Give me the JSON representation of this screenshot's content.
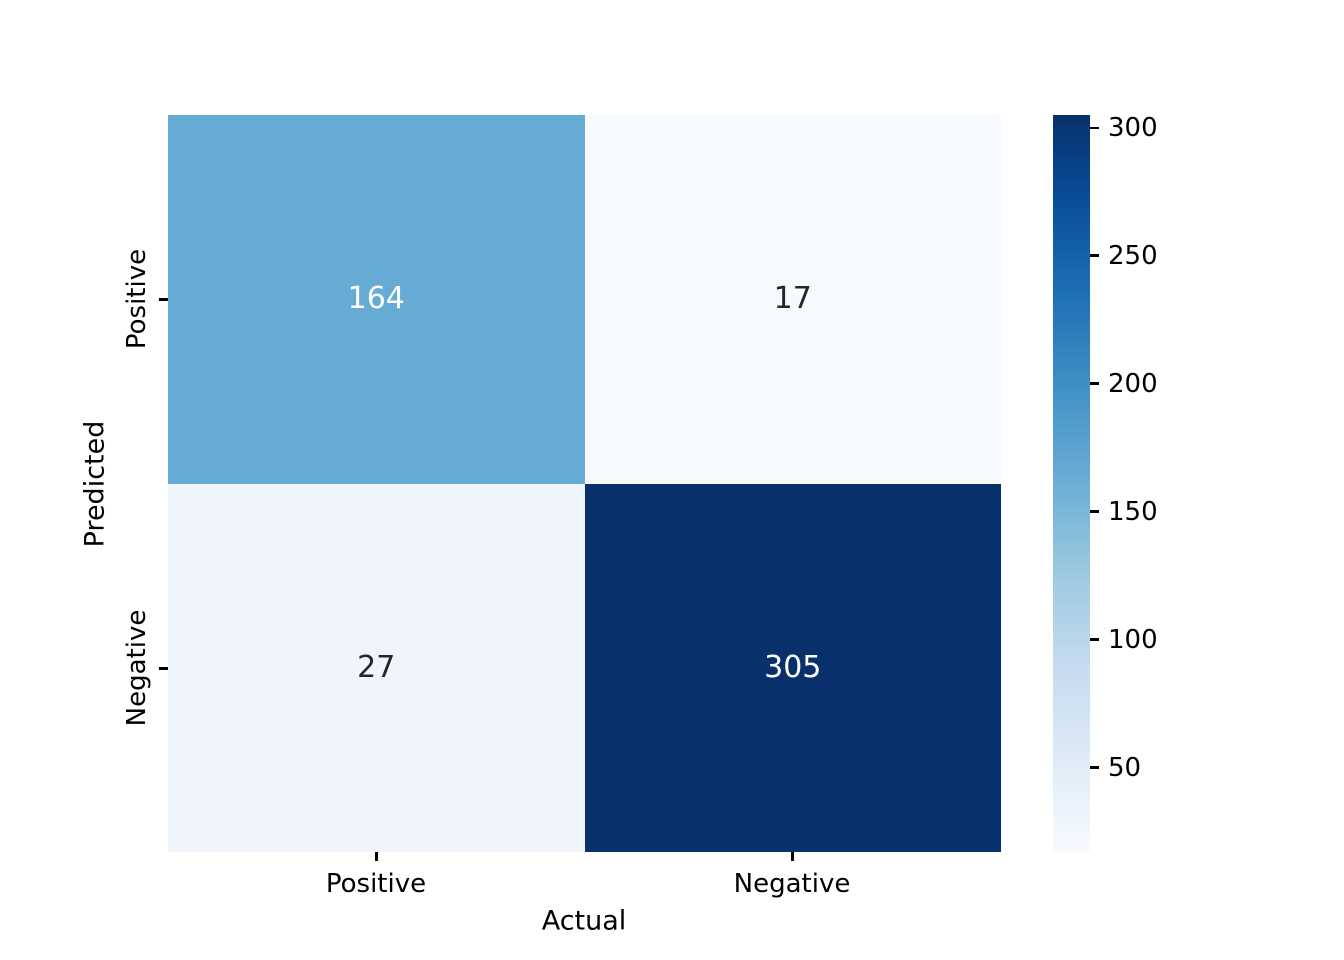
{
  "chart_data": {
    "type": "heatmap",
    "title": "",
    "xlabel": "Actual",
    "ylabel": "Predicted",
    "x_categories": [
      "Positive",
      "Negative"
    ],
    "y_categories": [
      "Positive",
      "Negative"
    ],
    "matrix": [
      [
        164,
        17
      ],
      [
        27,
        305
      ]
    ],
    "vmin": 17,
    "vmax": 305,
    "colormap": "Blues",
    "grid": "off",
    "legend": "colorbar-right",
    "colorbar_ticks": [
      50,
      100,
      150,
      200,
      250,
      300
    ],
    "cell_colors": [
      [
        "#66abd4",
        "#f6fafe"
      ],
      [
        "#f0f5fc",
        "#08306b"
      ]
    ],
    "cell_text_colors": [
      [
        "#ffffff",
        "#262626"
      ],
      [
        "#262626",
        "#ffffff"
      ]
    ],
    "colormap_stops": [
      "#f7fbff",
      "#deebf7",
      "#c6dbef",
      "#9ecae1",
      "#6baed6",
      "#4292c6",
      "#2171b5",
      "#08519c",
      "#08306b"
    ],
    "background_color": "#ffffff",
    "tick_color": "#000000"
  }
}
